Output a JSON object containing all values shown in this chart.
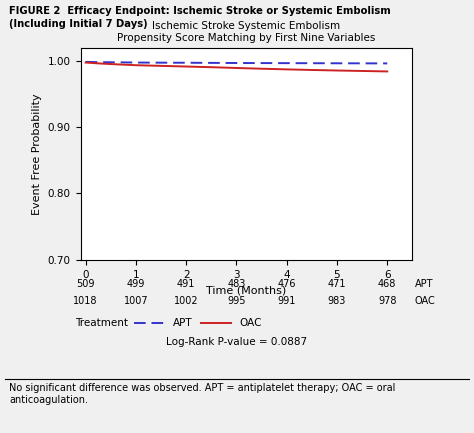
{
  "title_line1": "Ischemic Stroke Systemic Embolism",
  "title_line2": "Propensity Score Matching by First Nine Variables",
  "figure_title_line1": "FIGURE 2  Efficacy Endpoint: Ischemic Stroke or Systemic Embolism",
  "figure_title_line2": "(Including Initial 7 Days)",
  "xlabel": "Time (Months)",
  "ylabel": "Event Free Probability",
  "ylim": [
    0.7,
    1.02
  ],
  "xlim": [
    -0.1,
    6.5
  ],
  "yticks": [
    0.7,
    0.8,
    0.9,
    1.0
  ],
  "xticks": [
    0,
    1,
    2,
    3,
    4,
    5,
    6
  ],
  "apt_x": [
    0,
    0.3,
    0.7,
    1.0,
    1.5,
    2.0,
    2.5,
    3.0,
    3.5,
    4.0,
    4.5,
    5.0,
    5.5,
    6.0
  ],
  "apt_y": [
    0.9985,
    0.998,
    0.9978,
    0.9975,
    0.9973,
    0.9972,
    0.997,
    0.9968,
    0.9967,
    0.9966,
    0.9965,
    0.9964,
    0.9963,
    0.9962
  ],
  "oac_x": [
    0,
    0.3,
    0.7,
    1.0,
    1.5,
    2.0,
    2.5,
    3.0,
    3.5,
    4.0,
    4.5,
    5.0,
    5.5,
    6.0
  ],
  "oac_y": [
    0.9975,
    0.996,
    0.9945,
    0.9935,
    0.9925,
    0.9915,
    0.9905,
    0.9893,
    0.9882,
    0.9872,
    0.9863,
    0.9855,
    0.9848,
    0.9841
  ],
  "apt_color": "#3333CC",
  "oac_color": "#CC2222",
  "apt_numbers": [
    "509",
    "499",
    "491",
    "483",
    "476",
    "471",
    "468"
  ],
  "oac_numbers": [
    "1018",
    "1007",
    "1002",
    "995",
    "991",
    "983",
    "978"
  ],
  "numbers_x": [
    0,
    1,
    2,
    3,
    4,
    5,
    6
  ],
  "logrank_text": "Log-Rank P-value = 0.0887",
  "legend_label_apt": "APT",
  "legend_label_oac": "OAC",
  "legend_prefix": "Treatment",
  "background_color": "#f0f0f0",
  "plot_bg_color": "#ffffff",
  "footnote": "No significant difference was observed. APT = antiplatelet therapy; OAC = oral\nanticoagulation."
}
